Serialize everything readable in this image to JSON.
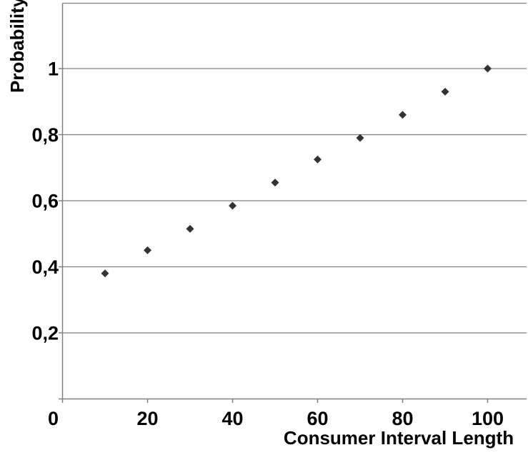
{
  "chart_data": {
    "type": "scatter",
    "title": "",
    "xlabel": "Consumer Interval Length",
    "ylabel": "Probability",
    "x": [
      10,
      20,
      30,
      40,
      50,
      60,
      70,
      80,
      90,
      100
    ],
    "values": [
      0.38,
      0.45,
      0.515,
      0.585,
      0.655,
      0.725,
      0.79,
      0.86,
      0.93,
      1.0
    ],
    "series_name": "Probability",
    "xlim": [
      0,
      109
    ],
    "ylim": [
      0,
      1.2
    ],
    "x_ticks": [
      {
        "value": 0,
        "label": "0"
      },
      {
        "value": 20,
        "label": "20"
      },
      {
        "value": 40,
        "label": "40"
      },
      {
        "value": 60,
        "label": "60"
      },
      {
        "value": 80,
        "label": "80"
      },
      {
        "value": 100,
        "label": "100"
      }
    ],
    "y_ticks": [
      {
        "value": 0.2,
        "label": "0,2"
      },
      {
        "value": 0.4,
        "label": "0,4"
      },
      {
        "value": 0.6,
        "label": "0,6"
      },
      {
        "value": 0.8,
        "label": "0,8"
      },
      {
        "value": 1.0,
        "label": "1"
      }
    ],
    "grid": "horizontal-only",
    "legend": "none",
    "marker": "diamond",
    "decimal_separator": ",",
    "colors": {
      "marker": "#333333",
      "gridline": "#808080",
      "axis": "#808080",
      "text": "#000000",
      "background": "#ffffff"
    }
  }
}
